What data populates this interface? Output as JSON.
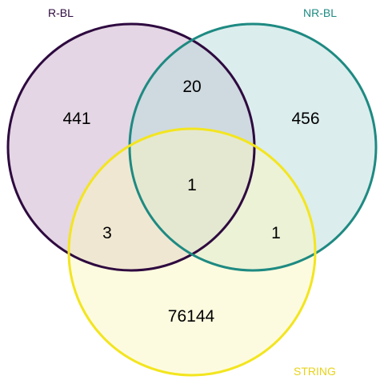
{
  "sets": [
    {
      "key": "a",
      "name": "R-BL",
      "stroke": "#2e0a40",
      "fill": "#c9aec9"
    },
    {
      "key": "b",
      "name": "NR-BL",
      "stroke": "#1e8a82",
      "fill": "#b9dcdc"
    },
    {
      "key": "c",
      "name": "STRING",
      "stroke": "#f3e51f",
      "fill": "#fbf7c0"
    }
  ],
  "regions": {
    "a_only": "441",
    "b_only": "456",
    "c_only": "76144",
    "ab": "20",
    "ac": "3",
    "bc": "1",
    "abc": "1"
  }
}
